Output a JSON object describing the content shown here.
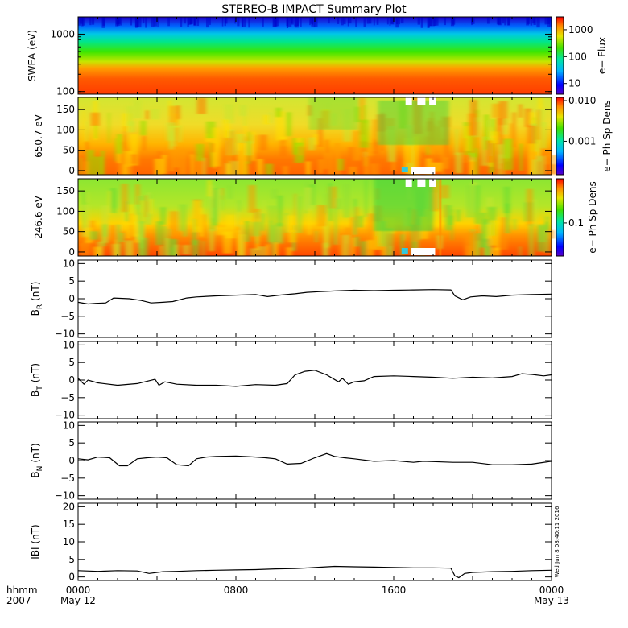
{
  "title": "STEREO-B IMPACT Summary Plot",
  "timestamp_note": "Wed Jun  8 08:40:11 2016",
  "footer": {
    "hhmm": "hhmm",
    "year": "2007",
    "ticks": [
      {
        "label": "0000",
        "sub": "May 12",
        "hour": 0
      },
      {
        "label": "0800",
        "sub": "",
        "hour": 8
      },
      {
        "label": "1600",
        "sub": "",
        "hour": 16
      },
      {
        "label": "0000",
        "sub": "May 13",
        "hour": 24
      }
    ]
  },
  "chart_data": [
    {
      "type": "heatmap",
      "id": "swea",
      "ylabel": "SWEA (eV)",
      "yscale": "log",
      "ylim": [
        90,
        2000
      ],
      "yticks": [
        {
          "v": 100,
          "label": "100"
        },
        {
          "v": 1000,
          "label": "1000"
        }
      ],
      "colorbar": {
        "label": "e− Flux",
        "scale": "log",
        "range": [
          4,
          3000
        ],
        "ticks": [
          {
            "v": 10,
            "label": "10"
          },
          {
            "v": 100,
            "label": "100"
          },
          {
            "v": 1000,
            "label": "1000"
          }
        ]
      }
    },
    {
      "type": "heatmap",
      "id": "pad650",
      "ylabel": "650.7 eV",
      "ylim": [
        -10,
        180
      ],
      "yticks": [
        {
          "v": 0,
          "label": "0"
        },
        {
          "v": 50,
          "label": "50"
        },
        {
          "v": 100,
          "label": "100"
        },
        {
          "v": 150,
          "label": "150"
        }
      ],
      "colorbar": {
        "label": "e− Ph Sp Dens",
        "scale": "log",
        "range": [
          0.00015,
          0.012
        ],
        "ticks": [
          {
            "v": 0.001,
            "label": "0.001"
          },
          {
            "v": 0.01,
            "label": "0.010"
          }
        ]
      }
    },
    {
      "type": "heatmap",
      "id": "pad246",
      "ylabel": "246.6 eV",
      "ylim": [
        -10,
        180
      ],
      "yticks": [
        {
          "v": 0,
          "label": "0"
        },
        {
          "v": 50,
          "label": "50"
        },
        {
          "v": 100,
          "label": "100"
        },
        {
          "v": 150,
          "label": "150"
        }
      ],
      "colorbar": {
        "label": "e− Ph Sp Dens",
        "scale": "log",
        "range": [
          0.03,
          0.5
        ],
        "ticks": [
          {
            "v": 0.1,
            "label": "0.1"
          }
        ]
      }
    },
    {
      "type": "line",
      "id": "br",
      "ylabel": "B",
      "ylabel_sub": "R",
      "ylabel_unit": "(nT)",
      "ylim": [
        -11,
        11
      ],
      "yticks": [
        {
          "v": -10,
          "label": "−10"
        },
        {
          "v": -5,
          "label": "−5"
        },
        {
          "v": 0,
          "label": "0"
        },
        {
          "v": 5,
          "label": "5"
        },
        {
          "v": 10,
          "label": "10"
        }
      ],
      "x": [
        0,
        0.5,
        0.9,
        1.4,
        1.8,
        2.6,
        3.2,
        3.7,
        4.3,
        4.8,
        5.5,
        6.0,
        7.0,
        8.0,
        9.0,
        9.6,
        10.2,
        11.0,
        11.6,
        12.2,
        13.0,
        14.0,
        15.0,
        16.0,
        17.0,
        18.0,
        18.9,
        19.1,
        19.5,
        19.9,
        20.5,
        21.2,
        22.0,
        23.0,
        24.0
      ],
      "y": [
        -1.0,
        -1.5,
        -1.3,
        -1.2,
        0.2,
        0.0,
        -0.5,
        -1.2,
        -1.0,
        -0.8,
        0.2,
        0.5,
        0.8,
        1.0,
        1.2,
        0.6,
        1.0,
        1.4,
        1.8,
        2.0,
        2.2,
        2.4,
        2.3,
        2.4,
        2.5,
        2.6,
        2.5,
        0.8,
        -0.3,
        0.5,
        0.8,
        0.6,
        1.0,
        1.2,
        1.3
      ]
    },
    {
      "type": "line",
      "id": "bt",
      "ylabel": "B",
      "ylabel_sub": "T",
      "ylabel_unit": "(nT)",
      "ylim": [
        -11,
        11
      ],
      "yticks": [
        {
          "v": -10,
          "label": "−10"
        },
        {
          "v": -5,
          "label": "−5"
        },
        {
          "v": 0,
          "label": "0"
        },
        {
          "v": 5,
          "label": "5"
        },
        {
          "v": 10,
          "label": "10"
        }
      ],
      "x": [
        0,
        0.3,
        0.5,
        1.0,
        2.0,
        3.0,
        3.9,
        4.1,
        4.4,
        5.0,
        6.0,
        7.0,
        8.0,
        9.0,
        10.0,
        10.6,
        11.0,
        11.5,
        12.0,
        12.6,
        13.2,
        13.4,
        13.7,
        14.0,
        14.5,
        15.0,
        16.0,
        17.0,
        18.0,
        19.0,
        20.0,
        21.0,
        22.0,
        22.5,
        23.0,
        23.6,
        24.0
      ],
      "y": [
        0.5,
        -1.2,
        0.0,
        -0.8,
        -1.5,
        -1.0,
        0.2,
        -1.5,
        -0.5,
        -1.2,
        -1.5,
        -1.5,
        -1.8,
        -1.3,
        -1.5,
        -1.0,
        1.5,
        2.5,
        2.8,
        1.5,
        -0.5,
        0.5,
        -1.2,
        -0.5,
        -0.2,
        1.0,
        1.2,
        1.0,
        0.8,
        0.5,
        0.8,
        0.6,
        1.0,
        1.8,
        1.6,
        1.2,
        1.5
      ]
    },
    {
      "type": "line",
      "id": "bn",
      "ylabel": "B",
      "ylabel_sub": "N",
      "ylabel_unit": "(nT)",
      "ylim": [
        -11,
        11
      ],
      "yticks": [
        {
          "v": -10,
          "label": "−10"
        },
        {
          "v": -5,
          "label": "−5"
        },
        {
          "v": 0,
          "label": "0"
        },
        {
          "v": 5,
          "label": "5"
        },
        {
          "v": 10,
          "label": "10"
        }
      ],
      "x": [
        0,
        0.5,
        1.0,
        1.6,
        2.1,
        2.5,
        3.0,
        3.5,
        4.0,
        4.5,
        5.0,
        5.6,
        6.0,
        6.5,
        7.0,
        8.0,
        9.0,
        9.5,
        10.0,
        10.6,
        11.3,
        12.0,
        12.6,
        13.0,
        13.5,
        14.0,
        15.0,
        16.0,
        17.0,
        17.5,
        18.0,
        19.0,
        20.0,
        21.0,
        22.0,
        23.0,
        24.0
      ],
      "y": [
        0.5,
        0.2,
        1.0,
        0.8,
        -1.5,
        -1.5,
        0.5,
        0.8,
        1.0,
        0.8,
        -1.2,
        -1.5,
        0.5,
        1.0,
        1.2,
        1.3,
        1.0,
        0.8,
        0.5,
        -1.0,
        -0.8,
        0.8,
        2.0,
        1.2,
        0.8,
        0.5,
        -0.2,
        0.0,
        -0.5,
        -0.2,
        -0.3,
        -0.5,
        -0.5,
        -1.2,
        -1.2,
        -1.0,
        -0.2
      ]
    },
    {
      "type": "line",
      "id": "bmag",
      "ylabel": "IBI (nT)",
      "ylim": [
        -1,
        21
      ],
      "yticks": [
        {
          "v": 0,
          "label": "0"
        },
        {
          "v": 5,
          "label": "5"
        },
        {
          "v": 10,
          "label": "10"
        },
        {
          "v": 15,
          "label": "15"
        },
        {
          "v": 20,
          "label": "20"
        }
      ],
      "x": [
        0,
        1.0,
        2.0,
        3.0,
        3.6,
        4.3,
        5.0,
        6.0,
        7.0,
        8.0,
        9.0,
        10.0,
        11.0,
        12.0,
        13.0,
        14.0,
        15.0,
        16.0,
        17.0,
        18.0,
        18.9,
        19.1,
        19.3,
        19.6,
        20.0,
        21.0,
        22.0,
        23.0,
        24.0
      ],
      "y": [
        1.8,
        1.6,
        1.8,
        1.7,
        1.0,
        1.5,
        1.6,
        1.8,
        1.9,
        2.0,
        2.1,
        2.3,
        2.4,
        2.7,
        3.0,
        2.9,
        2.8,
        2.7,
        2.6,
        2.6,
        2.5,
        0.3,
        -0.2,
        1.0,
        1.3,
        1.5,
        1.6,
        1.8,
        1.9
      ]
    }
  ]
}
